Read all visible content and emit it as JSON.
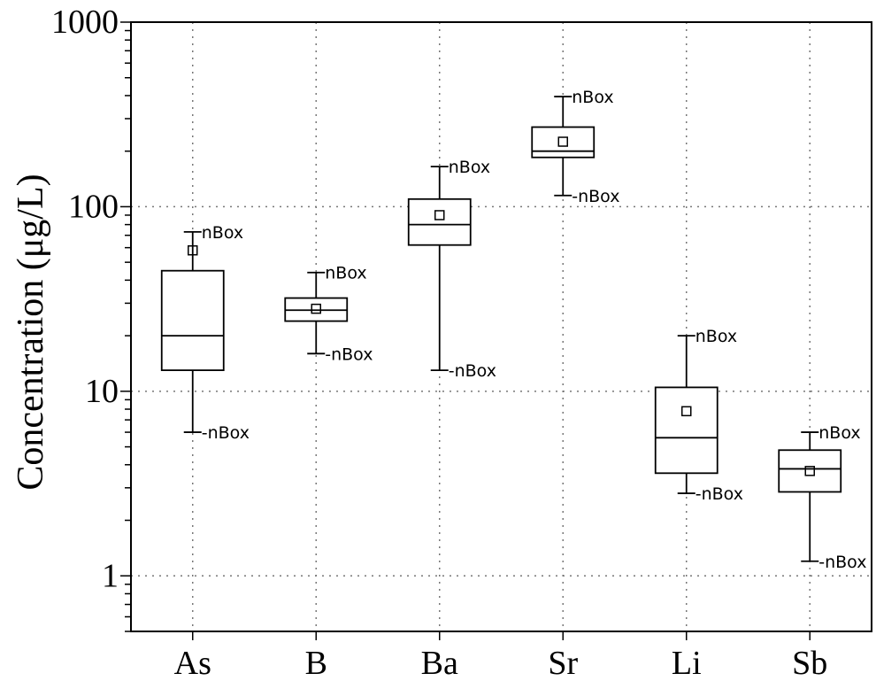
{
  "chart_data": {
    "type": "box",
    "ylabel": "Concentration (μg/L)",
    "xlabel": "",
    "yscale": "log",
    "ylim": [
      0.5,
      1000
    ],
    "yticks": [
      1,
      10,
      100,
      1000
    ],
    "ytick_labels": [
      "1",
      "10",
      "100",
      "1000"
    ],
    "grid": true,
    "categories": [
      "As",
      "B",
      "Ba",
      "Sr",
      "Li",
      "Sb"
    ],
    "boxes": [
      {
        "category": "As",
        "whisker_low": 6,
        "q1": 13,
        "median": 20,
        "q3": 45,
        "whisker_high": 73,
        "mean": 58,
        "low_label": "-nBox",
        "high_label": "nBox"
      },
      {
        "category": "B",
        "whisker_low": 16,
        "q1": 24,
        "median": 27.5,
        "q3": 32,
        "whisker_high": 44,
        "mean": 28,
        "low_label": "-nBox",
        "high_label": "nBox"
      },
      {
        "category": "Ba",
        "whisker_low": 13,
        "q1": 62,
        "median": 80,
        "q3": 110,
        "whisker_high": 165,
        "mean": 90,
        "low_label": "-nBox",
        "high_label": "nBox"
      },
      {
        "category": "Sr",
        "whisker_low": 115,
        "q1": 185,
        "median": 200,
        "q3": 270,
        "whisker_high": 395,
        "mean": 225,
        "low_label": "-nBox",
        "high_label": "nBox"
      },
      {
        "category": "Li",
        "whisker_low": 2.8,
        "q1": 3.6,
        "median": 5.6,
        "q3": 10.5,
        "whisker_high": 20,
        "mean": 7.8,
        "low_label": "-nBox",
        "high_label": "nBox"
      },
      {
        "category": "Sb",
        "whisker_low": 1.2,
        "q1": 2.85,
        "median": 3.8,
        "q3": 4.8,
        "whisker_high": 6,
        "mean": 3.7,
        "low_label": "-nBox",
        "high_label": "nBox"
      }
    ]
  }
}
